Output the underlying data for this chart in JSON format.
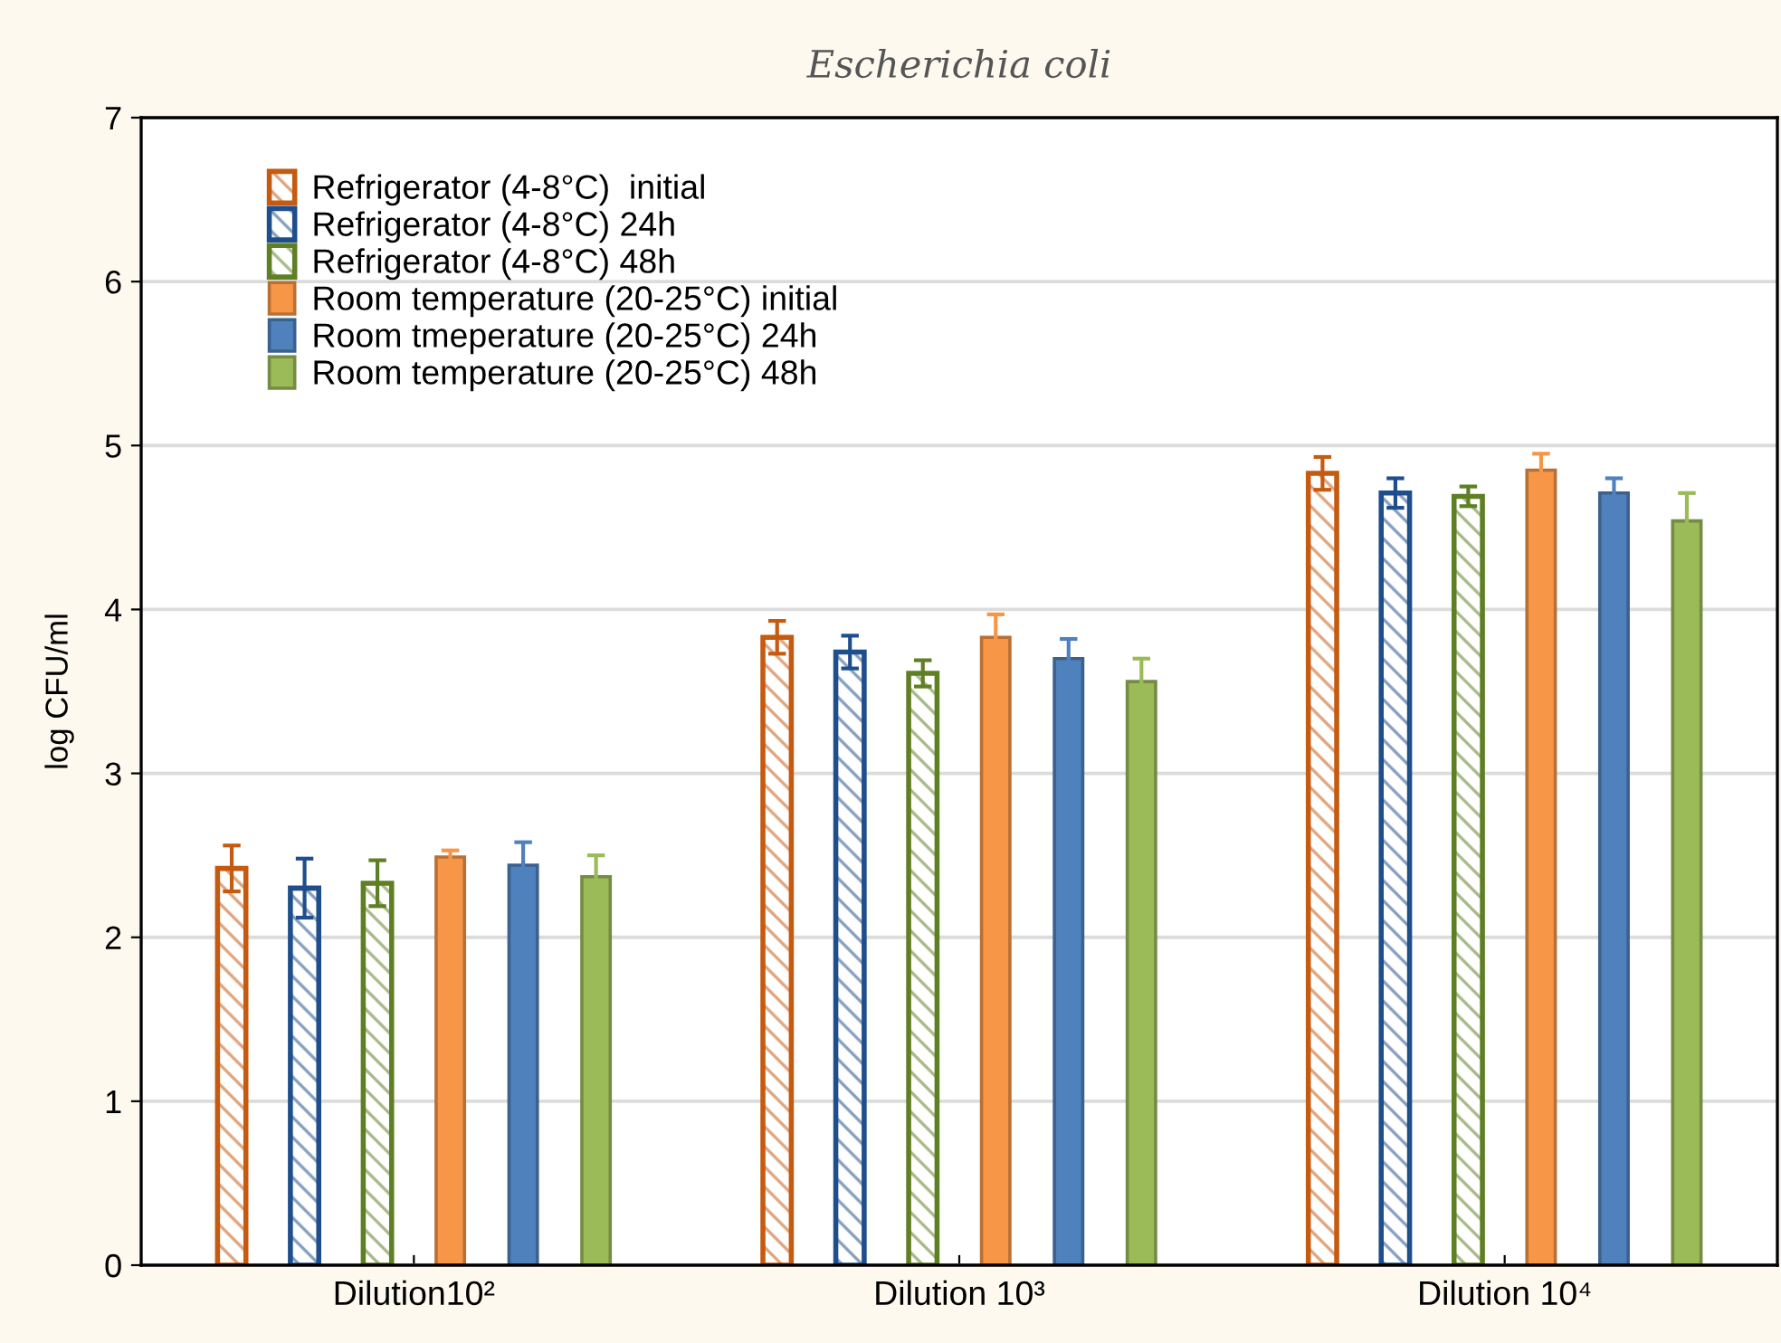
{
  "chart_data": {
    "type": "bar",
    "title": "Escherichia coli",
    "ylabel": "log CFU/ml",
    "categories": [
      "Dilution10²",
      "Dilution 10³",
      "Dilution 10⁴"
    ],
    "series": [
      {
        "name": "Refrigerator (4-8°C)  initial",
        "color": "#c55a11",
        "values": [
          2.42,
          3.83,
          4.83
        ],
        "errors": [
          0.14,
          0.1,
          0.1
        ]
      },
      {
        "name": "Refrigerator (4-8°C) 24h",
        "color": "#1f4e8c",
        "values": [
          2.3,
          3.74,
          4.71
        ],
        "errors": [
          0.18,
          0.1,
          0.09
        ]
      },
      {
        "name": "Refrigerator (4-8°C) 48h",
        "color": "#5f7f24",
        "values": [
          2.33,
          3.61,
          4.69
        ],
        "errors": [
          0.14,
          0.08,
          0.06
        ]
      },
      {
        "name": "Room temperature (20-25°C) initial",
        "color": "#f79646",
        "values": [
          2.49,
          3.83,
          4.85
        ],
        "errors": [
          0.04,
          0.14,
          0.1
        ]
      },
      {
        "name": "Room tmeperature (20-25°C) 24h",
        "color": "#4f81bd",
        "values": [
          2.44,
          3.7,
          4.71
        ],
        "errors": [
          0.14,
          0.12,
          0.09
        ]
      },
      {
        "name": "Room temperature (20-25°C) 48h",
        "color": "#9bbb59",
        "values": [
          2.37,
          3.56,
          4.54
        ],
        "errors": [
          0.13,
          0.14,
          0.17
        ]
      }
    ],
    "ylim": [
      0,
      7
    ],
    "yticks": [
      0,
      1,
      2,
      3,
      4,
      5,
      6,
      7
    ],
    "grid": "y",
    "legend": "top left"
  }
}
